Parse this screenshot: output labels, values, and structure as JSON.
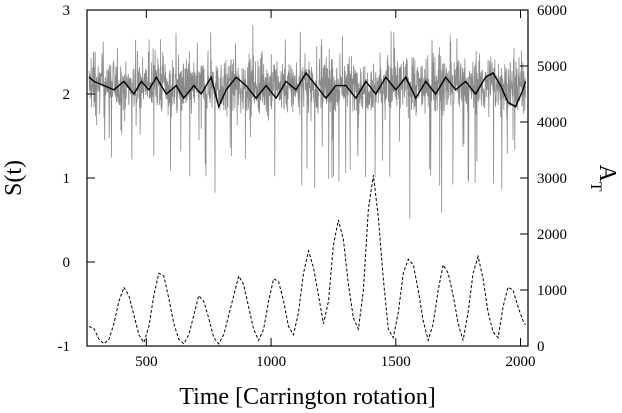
{
  "chart_data": {
    "type": "line",
    "xlabel": "Time [Carrington rotation]",
    "ylabel_left": "S(t)",
    "ylabel_right_main": "A",
    "ylabel_right_sub": "T",
    "xlim": [
      262,
      2030
    ],
    "ylim_left": [
      -1,
      3
    ],
    "ylim_right": [
      0,
      6000
    ],
    "x_ticks": [
      500,
      1000,
      1500,
      2000
    ],
    "x_tick_labels": [
      "500",
      "1000",
      "1500",
      "2000"
    ],
    "y_left_ticks": [
      -1,
      0,
      1,
      2,
      3
    ],
    "y_left_tick_labels": [
      "-1",
      "0",
      "1",
      "2",
      "3"
    ],
    "y_right_ticks": [
      0,
      1000,
      2000,
      3000,
      4000,
      5000,
      6000
    ],
    "y_right_tick_labels": [
      "0",
      "1000",
      "2000",
      "3000",
      "4000",
      "5000",
      "6000"
    ],
    "grid": false,
    "series": [
      {
        "style": "raw",
        "color": "#8a8a8a",
        "axis": "left",
        "x_range": [
          270,
          2020
        ],
        "mean": 2.1,
        "spread": 0.3
      },
      {
        "style": "smoothed",
        "color": "#000000",
        "axis": "left",
        "x": [
          270,
          290,
          330,
          370,
          410,
          450,
          480,
          510,
          540,
          580,
          620,
          650,
          690,
          720,
          760,
          790,
          820,
          860,
          900,
          940,
          980,
          1020,
          1060,
          1100,
          1140,
          1180,
          1220,
          1260,
          1300,
          1340,
          1380,
          1420,
          1460,
          1500,
          1540,
          1580,
          1620,
          1660,
          1700,
          1740,
          1780,
          1820,
          1860,
          1890,
          1920,
          1950,
          1980,
          2010,
          2020
        ],
        "y": [
          2.2,
          2.15,
          2.1,
          2.05,
          2.15,
          2.0,
          2.15,
          2.05,
          2.2,
          2.0,
          2.1,
          1.95,
          2.1,
          2.0,
          2.2,
          1.85,
          2.05,
          2.2,
          2.1,
          1.95,
          2.1,
          1.95,
          2.15,
          2.05,
          2.25,
          2.1,
          1.95,
          2.1,
          2.1,
          1.95,
          2.15,
          2.0,
          2.2,
          2.05,
          2.2,
          1.95,
          2.15,
          2.0,
          2.2,
          2.05,
          2.15,
          2.0,
          2.2,
          2.25,
          2.1,
          1.9,
          1.85,
          2.05,
          2.15
        ]
      },
      {
        "style": "dashed",
        "color": "#000000",
        "axis": "right",
        "x": [
          270,
          290,
          310,
          330,
          350,
          370,
          390,
          410,
          430,
          450,
          470,
          490,
          510,
          530,
          550,
          570,
          590,
          610,
          630,
          650,
          670,
          690,
          710,
          730,
          750,
          770,
          790,
          810,
          830,
          850,
          870,
          890,
          910,
          930,
          950,
          970,
          990,
          1010,
          1030,
          1050,
          1070,
          1090,
          1110,
          1130,
          1150,
          1170,
          1190,
          1210,
          1230,
          1250,
          1270,
          1290,
          1310,
          1330,
          1350,
          1370,
          1390,
          1410,
          1430,
          1450,
          1470,
          1490,
          1510,
          1530,
          1550,
          1570,
          1590,
          1610,
          1630,
          1650,
          1670,
          1690,
          1710,
          1730,
          1750,
          1770,
          1790,
          1810,
          1830,
          1850,
          1870,
          1890,
          1910,
          1930,
          1950,
          1970,
          1990,
          2010,
          2020
        ],
        "y": [
          350,
          310,
          120,
          40,
          120,
          400,
          800,
          1050,
          900,
          550,
          200,
          60,
          350,
          900,
          1300,
          1250,
          850,
          400,
          120,
          40,
          200,
          550,
          900,
          800,
          500,
          150,
          40,
          200,
          550,
          900,
          1250,
          1100,
          700,
          300,
          100,
          300,
          800,
          1200,
          1150,
          800,
          350,
          200,
          600,
          1300,
          1700,
          1400,
          900,
          400,
          800,
          1800,
          2250,
          1900,
          1100,
          500,
          300,
          1000,
          2450,
          3050,
          2300,
          1200,
          300,
          150,
          600,
          1300,
          1550,
          1450,
          1000,
          450,
          100,
          400,
          1000,
          1450,
          1300,
          900,
          400,
          100,
          600,
          1300,
          1600,
          1200,
          600,
          250,
          150,
          700,
          1050,
          1000,
          700,
          450,
          380
        ]
      }
    ]
  }
}
